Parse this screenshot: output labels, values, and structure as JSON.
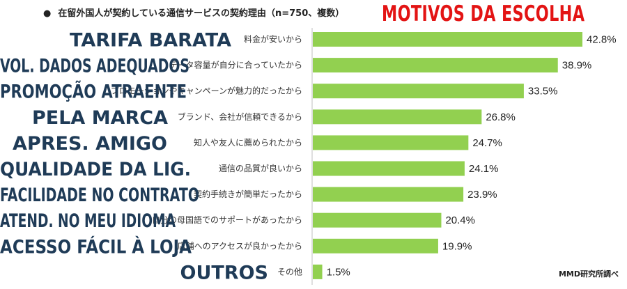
{
  "header": {
    "bullet": "●",
    "title": "在留外国人が契約している通信サービスの契約理由（n=750、複数）",
    "overlay_title": "MOTIVOS DA ESCOLHA"
  },
  "source": "MMD研究所調べ",
  "colors": {
    "bar": "#92d050",
    "overlay_label": "#1f3b57",
    "overlay_title": "#e31414",
    "axis": "#bfbfbf"
  },
  "chart_data": {
    "type": "bar",
    "orientation": "horizontal",
    "categories": [
      "料金が安いから",
      "データ容量が自分に合っていたから",
      "プロモーションやキャンペーンが魅力的だったから",
      "ブランド、会社が信頼できるから",
      "知人や友人に薦められたから",
      "通信の品質が良いから",
      "契約手続きが簡単だったから",
      "自分の母国語でのサポートがあったから",
      "店舗へのアクセスが良かったから",
      "その他"
    ],
    "overlay_labels": [
      "TARIFA BARATA",
      "VOL. DADOS ADEQUADOS",
      "PROMOÇÃO ATRAENTE",
      "PELA MARCA",
      "APRES. AMIGO",
      "QUALIDADE DA LIG.",
      "FACILIDADE NO CONTRATO",
      "ATEND. NO MEU IDIOMA",
      "ACESSO FÁCIL À LOJA",
      "OUTROS"
    ],
    "values": [
      42.8,
      38.9,
      33.5,
      26.8,
      24.7,
      24.1,
      23.9,
      20.4,
      19.9,
      1.5
    ],
    "value_labels": [
      "42.8%",
      "38.9%",
      "33.5%",
      "26.8%",
      "24.7%",
      "24.1%",
      "23.9%",
      "20.4%",
      "19.9%",
      "1.5%"
    ],
    "xlim": [
      0,
      42.8
    ]
  }
}
